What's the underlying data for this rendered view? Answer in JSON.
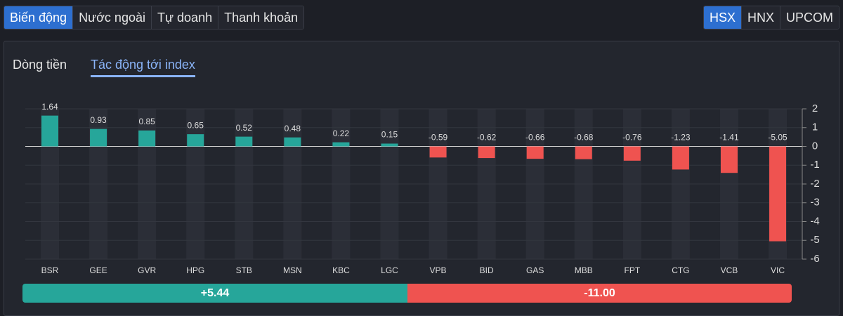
{
  "tabs": [
    "Biến động",
    "Nước ngoài",
    "Tự doanh",
    "Thanh khoản"
  ],
  "exchanges": [
    "HSX",
    "HNX",
    "UPCOM"
  ],
  "subtabs": [
    "Dòng tiền",
    "Tác động tới index"
  ],
  "chart_data": {
    "type": "bar",
    "categories": [
      "BSR",
      "GEE",
      "GVR",
      "HPG",
      "STB",
      "MSN",
      "KBC",
      "LGC",
      "VPB",
      "BID",
      "GAS",
      "MBB",
      "FPT",
      "CTG",
      "VCB",
      "VIC"
    ],
    "values": [
      1.64,
      0.93,
      0.85,
      0.65,
      0.52,
      0.48,
      0.22,
      0.15,
      -0.59,
      -0.62,
      -0.66,
      -0.68,
      -0.76,
      -1.23,
      -1.41,
      -5.05
    ],
    "positive_color": "#26a69a",
    "negative_color": "#ef5350",
    "ylim": [
      -6,
      2
    ],
    "yticks": [
      -6,
      -5,
      -4,
      -3,
      -2,
      -1,
      0,
      1,
      2
    ],
    "grid": true
  },
  "summary": {
    "positive": "+5.44",
    "negative": "-11.00"
  }
}
